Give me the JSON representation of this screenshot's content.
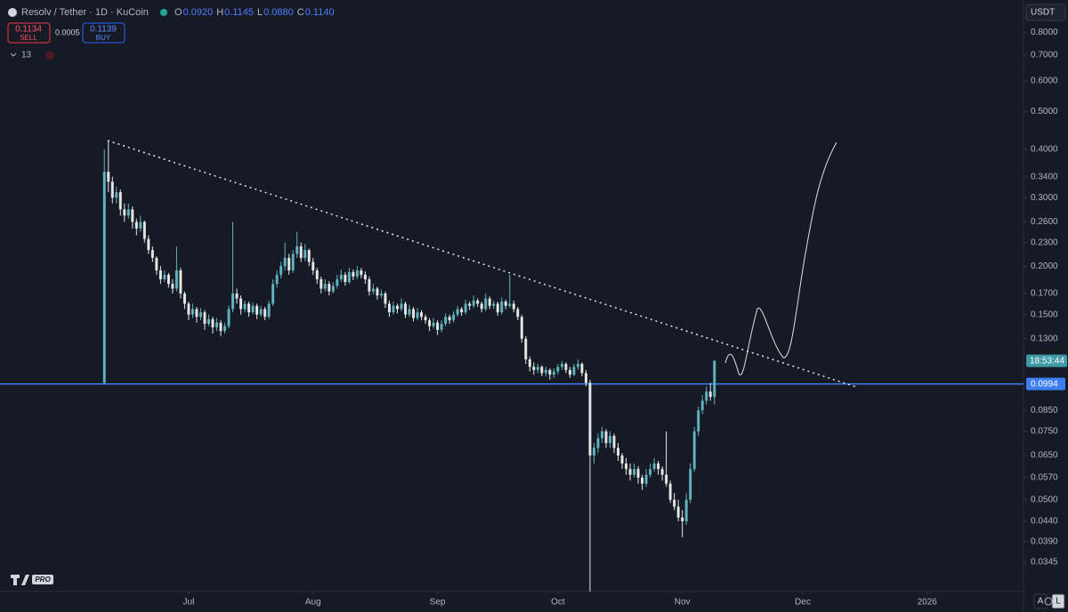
{
  "toolbar": {
    "symbol": "Resolv / Tether · 1D · KuCoin",
    "ohlc": [
      {
        "key": "O",
        "value": "0.0920"
      },
      {
        "key": "H",
        "value": "0.1145"
      },
      {
        "key": "L",
        "value": "0.0880"
      },
      {
        "key": "C",
        "value": "0.1140"
      }
    ],
    "sell_price": "0.1134",
    "sell": "SELL",
    "spread": "0.0005",
    "buy_price": "0.1139",
    "buy": "BUY",
    "indicators": "13"
  },
  "chart_data": {
    "type": "candlestick",
    "up_color": "#5fb3bf",
    "down_color": "#e6e6e6",
    "log_scale": true,
    "grid": false,
    "currency": "USDT",
    "countdown": "18:53:44",
    "hline": {
      "value": 0.0994,
      "color": "#3d7ef0"
    },
    "buttons": [
      "A",
      "L"
    ],
    "xlim": [
      -26,
      229
    ],
    "xticks": [
      {
        "value": 21,
        "label": "Jul"
      },
      {
        "value": 52,
        "label": "Aug"
      },
      {
        "value": 83,
        "label": "Sep"
      },
      {
        "value": 113,
        "label": "Oct"
      },
      {
        "value": 144,
        "label": "Nov"
      },
      {
        "value": 174,
        "label": "Dec"
      },
      {
        "value": 205,
        "label": "2026"
      }
    ],
    "ylim": [
      0.029,
      0.97
    ],
    "yticks": [
      {
        "value": 0.8,
        "label": "0.8000"
      },
      {
        "value": 0.7,
        "label": "0.7000"
      },
      {
        "value": 0.6,
        "label": "0.6000"
      },
      {
        "value": 0.5,
        "label": "0.5000"
      },
      {
        "value": 0.4,
        "label": "0.4000"
      },
      {
        "value": 0.34,
        "label": "0.3400"
      },
      {
        "value": 0.3,
        "label": "0.3000"
      },
      {
        "value": 0.26,
        "label": "0.2600"
      },
      {
        "value": 0.23,
        "label": "0.2300"
      },
      {
        "value": 0.2,
        "label": "0.2000"
      },
      {
        "value": 0.17,
        "label": "0.1700"
      },
      {
        "value": 0.15,
        "label": "0.1500"
      },
      {
        "value": 0.13,
        "label": "0.1300"
      },
      {
        "value": 0.085,
        "label": "0.0850"
      },
      {
        "value": 0.075,
        "label": "0.0750"
      },
      {
        "value": 0.065,
        "label": "0.0650"
      },
      {
        "value": 0.057,
        "label": "0.0570"
      },
      {
        "value": 0.05,
        "label": "0.0500"
      },
      {
        "value": 0.044,
        "label": "0.0440"
      },
      {
        "value": 0.039,
        "label": "0.0390"
      },
      0.0345
    ],
    "ohlc": [
      [
        0.1,
        0.4,
        0.099,
        0.35
      ],
      [
        0.35,
        0.42,
        0.31,
        0.33
      ],
      [
        0.33,
        0.34,
        0.29,
        0.3
      ],
      [
        0.3,
        0.32,
        0.29,
        0.31
      ],
      [
        0.31,
        0.315,
        0.27,
        0.28
      ],
      [
        0.28,
        0.29,
        0.26,
        0.27
      ],
      [
        0.27,
        0.29,
        0.265,
        0.28
      ],
      [
        0.28,
        0.285,
        0.25,
        0.26
      ],
      [
        0.26,
        0.265,
        0.24,
        0.25
      ],
      [
        0.25,
        0.27,
        0.245,
        0.26
      ],
      [
        0.26,
        0.262,
        0.23,
        0.235
      ],
      [
        0.235,
        0.24,
        0.215,
        0.22
      ],
      [
        0.22,
        0.225,
        0.205,
        0.21
      ],
      [
        0.21,
        0.212,
        0.19,
        0.195
      ],
      [
        0.195,
        0.2,
        0.18,
        0.185
      ],
      [
        0.185,
        0.195,
        0.182,
        0.19
      ],
      [
        0.19,
        0.192,
        0.176,
        0.18
      ],
      [
        0.18,
        0.185,
        0.17,
        0.175
      ],
      [
        0.175,
        0.225,
        0.172,
        0.195
      ],
      [
        0.195,
        0.198,
        0.165,
        0.17
      ],
      [
        0.17,
        0.172,
        0.155,
        0.16
      ],
      [
        0.16,
        0.162,
        0.145,
        0.15
      ],
      [
        0.15,
        0.16,
        0.147,
        0.155
      ],
      [
        0.155,
        0.157,
        0.143,
        0.148
      ],
      [
        0.148,
        0.156,
        0.145,
        0.152
      ],
      [
        0.152,
        0.154,
        0.137,
        0.142
      ],
      [
        0.142,
        0.15,
        0.14,
        0.146
      ],
      [
        0.146,
        0.148,
        0.134,
        0.139
      ],
      [
        0.139,
        0.147,
        0.136,
        0.143
      ],
      [
        0.143,
        0.145,
        0.132,
        0.136
      ],
      [
        0.136,
        0.143,
        0.134,
        0.14
      ],
      [
        0.14,
        0.158,
        0.138,
        0.155
      ],
      [
        0.155,
        0.26,
        0.152,
        0.17
      ],
      [
        0.17,
        0.175,
        0.16,
        0.165
      ],
      [
        0.165,
        0.168,
        0.15,
        0.155
      ],
      [
        0.155,
        0.163,
        0.152,
        0.16
      ],
      [
        0.16,
        0.162,
        0.148,
        0.152
      ],
      [
        0.152,
        0.161,
        0.15,
        0.158
      ],
      [
        0.158,
        0.16,
        0.146,
        0.15
      ],
      [
        0.15,
        0.158,
        0.148,
        0.155
      ],
      [
        0.155,
        0.157,
        0.145,
        0.148
      ],
      [
        0.148,
        0.163,
        0.146,
        0.16
      ],
      [
        0.16,
        0.185,
        0.158,
        0.18
      ],
      [
        0.18,
        0.195,
        0.176,
        0.19
      ],
      [
        0.19,
        0.205,
        0.186,
        0.2
      ],
      [
        0.2,
        0.23,
        0.195,
        0.21
      ],
      [
        0.21,
        0.215,
        0.19,
        0.195
      ],
      [
        0.195,
        0.22,
        0.192,
        0.215
      ],
      [
        0.215,
        0.245,
        0.21,
        0.225
      ],
      [
        0.225,
        0.23,
        0.205,
        0.21
      ],
      [
        0.21,
        0.228,
        0.206,
        0.22
      ],
      [
        0.22,
        0.222,
        0.2,
        0.205
      ],
      [
        0.205,
        0.21,
        0.19,
        0.195
      ],
      [
        0.195,
        0.198,
        0.18,
        0.185
      ],
      [
        0.185,
        0.188,
        0.17,
        0.175
      ],
      [
        0.175,
        0.185,
        0.172,
        0.18
      ],
      [
        0.18,
        0.183,
        0.168,
        0.172
      ],
      [
        0.172,
        0.182,
        0.17,
        0.178
      ],
      [
        0.178,
        0.19,
        0.175,
        0.185
      ],
      [
        0.185,
        0.196,
        0.182,
        0.19
      ],
      [
        0.19,
        0.193,
        0.178,
        0.182
      ],
      [
        0.182,
        0.198,
        0.18,
        0.193
      ],
      [
        0.193,
        0.196,
        0.184,
        0.188
      ],
      [
        0.188,
        0.2,
        0.185,
        0.195
      ],
      [
        0.195,
        0.198,
        0.186,
        0.19
      ],
      [
        0.19,
        0.194,
        0.18,
        0.185
      ],
      [
        0.185,
        0.188,
        0.168,
        0.172
      ],
      [
        0.172,
        0.18,
        0.169,
        0.175
      ],
      [
        0.175,
        0.177,
        0.164,
        0.168
      ],
      [
        0.168,
        0.174,
        0.165,
        0.17
      ],
      [
        0.17,
        0.172,
        0.156,
        0.16
      ],
      [
        0.16,
        0.163,
        0.148,
        0.152
      ],
      [
        0.152,
        0.162,
        0.15,
        0.158
      ],
      [
        0.158,
        0.16,
        0.151,
        0.155
      ],
      [
        0.155,
        0.165,
        0.153,
        0.16
      ],
      [
        0.16,
        0.162,
        0.147,
        0.15
      ],
      [
        0.15,
        0.159,
        0.148,
        0.155
      ],
      [
        0.155,
        0.157,
        0.144,
        0.147
      ],
      [
        0.147,
        0.156,
        0.145,
        0.152
      ],
      [
        0.152,
        0.154,
        0.145,
        0.148
      ],
      [
        0.148,
        0.15,
        0.142,
        0.145
      ],
      [
        0.145,
        0.147,
        0.136,
        0.14
      ],
      [
        0.14,
        0.147,
        0.138,
        0.143
      ],
      [
        0.143,
        0.145,
        0.133,
        0.137
      ],
      [
        0.137,
        0.145,
        0.135,
        0.142
      ],
      [
        0.142,
        0.151,
        0.14,
        0.148
      ],
      [
        0.148,
        0.15,
        0.142,
        0.145
      ],
      [
        0.145,
        0.153,
        0.143,
        0.15
      ],
      [
        0.15,
        0.158,
        0.148,
        0.155
      ],
      [
        0.155,
        0.157,
        0.149,
        0.152
      ],
      [
        0.152,
        0.164,
        0.15,
        0.16
      ],
      [
        0.16,
        0.162,
        0.154,
        0.158
      ],
      [
        0.158,
        0.168,
        0.156,
        0.163
      ],
      [
        0.163,
        0.165,
        0.157,
        0.16
      ],
      [
        0.16,
        0.162,
        0.152,
        0.155
      ],
      [
        0.155,
        0.17,
        0.153,
        0.165
      ],
      [
        0.165,
        0.167,
        0.155,
        0.158
      ],
      [
        0.158,
        0.163,
        0.155,
        0.16
      ],
      [
        0.16,
        0.162,
        0.149,
        0.152
      ],
      [
        0.152,
        0.166,
        0.15,
        0.162
      ],
      [
        0.162,
        0.164,
        0.155,
        0.158
      ],
      [
        0.158,
        0.19,
        0.156,
        0.16
      ],
      [
        0.16,
        0.163,
        0.152,
        0.155
      ],
      [
        0.155,
        0.157,
        0.145,
        0.148
      ],
      [
        0.148,
        0.15,
        0.127,
        0.13
      ],
      [
        0.13,
        0.132,
        0.112,
        0.115
      ],
      [
        0.115,
        0.117,
        0.107,
        0.11
      ],
      [
        0.11,
        0.113,
        0.105,
        0.108
      ],
      [
        0.108,
        0.112,
        0.106,
        0.11
      ],
      [
        0.11,
        0.111,
        0.104,
        0.106
      ],
      [
        0.106,
        0.11,
        0.104,
        0.108
      ],
      [
        0.108,
        0.109,
        0.102,
        0.105
      ],
      [
        0.105,
        0.109,
        0.103,
        0.107
      ],
      [
        0.107,
        0.112,
        0.105,
        0.11
      ],
      [
        0.11,
        0.114,
        0.108,
        0.112
      ],
      [
        0.112,
        0.113,
        0.106,
        0.108
      ],
      [
        0.108,
        0.11,
        0.103,
        0.105
      ],
      [
        0.105,
        0.112,
        0.104,
        0.11
      ],
      [
        0.11,
        0.115,
        0.108,
        0.112
      ],
      [
        0.112,
        0.113,
        0.104,
        0.106
      ],
      [
        0.106,
        0.108,
        0.098,
        0.1
      ],
      [
        0.1,
        0.102,
        0.029,
        0.065
      ],
      [
        0.065,
        0.07,
        0.062,
        0.068
      ],
      [
        0.068,
        0.074,
        0.066,
        0.072
      ],
      [
        0.072,
        0.077,
        0.07,
        0.075
      ],
      [
        0.075,
        0.076,
        0.068,
        0.07
      ],
      [
        0.07,
        0.075,
        0.068,
        0.073
      ],
      [
        0.073,
        0.074,
        0.066,
        0.068
      ],
      [
        0.068,
        0.07,
        0.063,
        0.065
      ],
      [
        0.065,
        0.066,
        0.06,
        0.062
      ],
      [
        0.062,
        0.064,
        0.058,
        0.06
      ],
      [
        0.06,
        0.062,
        0.056,
        0.058
      ],
      [
        0.058,
        0.062,
        0.057,
        0.06
      ],
      [
        0.06,
        0.061,
        0.055,
        0.057
      ],
      [
        0.057,
        0.058,
        0.053,
        0.055
      ],
      [
        0.055,
        0.06,
        0.054,
        0.058
      ],
      [
        0.058,
        0.062,
        0.057,
        0.06
      ],
      [
        0.06,
        0.064,
        0.059,
        0.062
      ],
      [
        0.062,
        0.063,
        0.058,
        0.06
      ],
      [
        0.06,
        0.061,
        0.056,
        0.058
      ],
      [
        0.058,
        0.075,
        0.054,
        0.055
      ],
      [
        0.055,
        0.056,
        0.049,
        0.05
      ],
      [
        0.05,
        0.052,
        0.047,
        0.048
      ],
      [
        0.048,
        0.05,
        0.044,
        0.045
      ],
      [
        0.045,
        0.047,
        0.04,
        0.044
      ],
      [
        0.044,
        0.052,
        0.043,
        0.05
      ],
      [
        0.05,
        0.062,
        0.049,
        0.06
      ],
      [
        0.06,
        0.077,
        0.059,
        0.075
      ],
      [
        0.075,
        0.087,
        0.073,
        0.085
      ],
      [
        0.085,
        0.093,
        0.083,
        0.09
      ],
      [
        0.09,
        0.098,
        0.088,
        0.095
      ],
      [
        0.095,
        0.1,
        0.09,
        0.092
      ],
      [
        0.092,
        0.1145,
        0.088,
        0.114
      ]
    ]
  }
}
